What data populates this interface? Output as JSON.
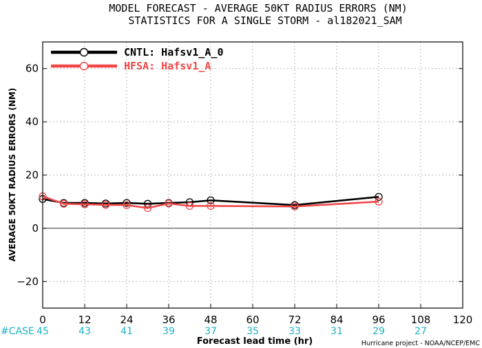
{
  "chart_data": {
    "type": "line",
    "title": "MODEL FORECAST - AVERAGE 50KT RADIUS ERRORS (NM)",
    "subtitle": "STATISTICS FOR A SINGLE STORM - al182021_SAM",
    "xlabel": "Forecast lead time (hr)",
    "ylabel": "AVERAGE 50KT RADIUS ERRORS (NM)",
    "xlim": [
      0,
      120
    ],
    "ylim": [
      -30,
      70
    ],
    "xticks": [
      0,
      12,
      24,
      36,
      48,
      60,
      72,
      84,
      96,
      108,
      120
    ],
    "yticks": [
      -20,
      0,
      20,
      40,
      60
    ],
    "grid": true,
    "legend_position": "top-left",
    "case_label": "#CASE",
    "case_counts": [
      {
        "x": 0,
        "n": "45"
      },
      {
        "x": 12,
        "n": "43"
      },
      {
        "x": 24,
        "n": "41"
      },
      {
        "x": 36,
        "n": "39"
      },
      {
        "x": 48,
        "n": "37"
      },
      {
        "x": 60,
        "n": "35"
      },
      {
        "x": 72,
        "n": "33"
      },
      {
        "x": 84,
        "n": "31"
      },
      {
        "x": 96,
        "n": "29"
      },
      {
        "x": 108,
        "n": "27"
      }
    ],
    "series": [
      {
        "name": "CNTL: Hafsv1_A_0",
        "color": "#000000",
        "points": [
          [
            0,
            11
          ],
          [
            6,
            9.5
          ],
          [
            12,
            9.5
          ],
          [
            18,
            9.3
          ],
          [
            24,
            9.5
          ],
          [
            30,
            9.2
          ],
          [
            36,
            9.5
          ],
          [
            42,
            9.8
          ],
          [
            48,
            10.5
          ],
          [
            72,
            8.7
          ],
          [
            96,
            11.8
          ]
        ]
      },
      {
        "name": "HFSA: Hafsv1_A",
        "color": "#f04646",
        "points": [
          [
            0,
            12
          ],
          [
            6,
            9.2
          ],
          [
            12,
            9.0
          ],
          [
            18,
            8.8
          ],
          [
            24,
            8.7
          ],
          [
            30,
            7.6
          ],
          [
            36,
            9.3
          ],
          [
            42,
            8.4
          ],
          [
            48,
            8.4
          ],
          [
            72,
            8.2
          ],
          [
            96,
            10.0
          ]
        ]
      }
    ]
  },
  "credit": "Hurricane project - NOAA/NCEP/EMC"
}
